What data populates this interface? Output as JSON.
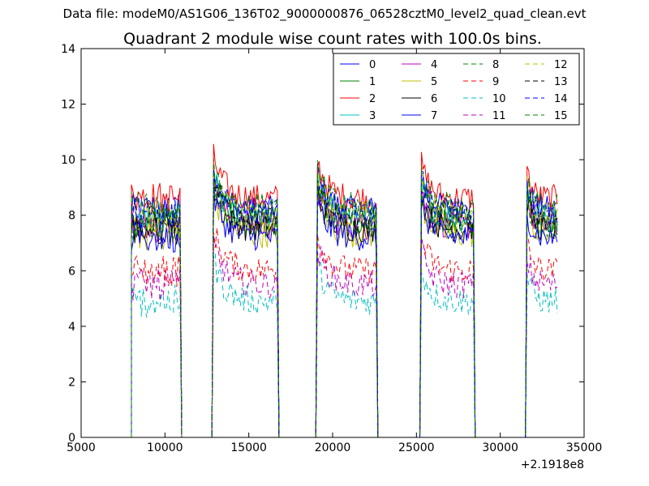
{
  "figure": {
    "suptitle": "Data file: modeM0/AS1G06_136T02_9000000876_06528cztM0_level2_quad_clean.evt"
  },
  "chart_data": {
    "type": "line",
    "title": "Quadrant 2 module wise count rates with 100.0s bins.",
    "xlabel": "",
    "ylabel": "",
    "xlim": [
      5000,
      35000
    ],
    "ylim": [
      0,
      14
    ],
    "x_offset_label": "+2.1918e8",
    "xticks": [
      5000,
      10000,
      15000,
      20000,
      25000,
      30000,
      35000
    ],
    "xtick_labels": [
      "5000",
      "10000",
      "15000",
      "20000",
      "25000",
      "30000",
      "35000"
    ],
    "yticks": [
      0,
      2,
      4,
      6,
      8,
      10,
      12,
      14
    ],
    "ytick_labels": [
      "0",
      "2",
      "4",
      "6",
      "8",
      "10",
      "12",
      "14"
    ],
    "grid": false,
    "legend_position": "top-right",
    "legend_columns": 4,
    "orbit_segments": [
      {
        "x_start": 8000,
        "x_end": 10900,
        "y_offset": 0
      },
      {
        "x_start": 12900,
        "x_end": 16700,
        "y_offset": 1.5
      },
      {
        "x_start": 19100,
        "x_end": 22600,
        "y_offset": 1.3
      },
      {
        "x_start": 25300,
        "x_end": 28400,
        "y_offset": 1.2
      },
      {
        "x_start": 31600,
        "x_end": 33400,
        "y_offset": 1.0
      }
    ],
    "series": [
      {
        "name": "0",
        "color": "#0000ff",
        "dash": "solid",
        "level": 8.2
      },
      {
        "name": "1",
        "color": "#008000",
        "dash": "solid",
        "level": 7.8
      },
      {
        "name": "2",
        "color": "#ff0000",
        "dash": "solid",
        "level": 8.6
      },
      {
        "name": "3",
        "color": "#00bfbf",
        "dash": "solid",
        "level": 7.9
      },
      {
        "name": "4",
        "color": "#bf00bf",
        "dash": "solid",
        "level": 7.6
      },
      {
        "name": "5",
        "color": "#bfbf00",
        "dash": "solid",
        "level": 7.3
      },
      {
        "name": "6",
        "color": "#000000",
        "dash": "solid",
        "level": 7.5
      },
      {
        "name": "7",
        "color": "#0000ff",
        "dash": "solid",
        "level": 7.2
      },
      {
        "name": "8",
        "color": "#008000",
        "dash": "dashed",
        "level": 7.7
      },
      {
        "name": "9",
        "color": "#ff0000",
        "dash": "dashed",
        "level": 6.0
      },
      {
        "name": "10",
        "color": "#00bfbf",
        "dash": "dashed",
        "level": 4.9
      },
      {
        "name": "11",
        "color": "#bf00bf",
        "dash": "dashed",
        "level": 5.5
      },
      {
        "name": "12",
        "color": "#bfbf00",
        "dash": "dashed",
        "level": 8.0
      },
      {
        "name": "13",
        "color": "#000000",
        "dash": "dashed",
        "level": 7.9
      },
      {
        "name": "14",
        "color": "#0000ff",
        "dash": "dashed",
        "level": 8.1
      },
      {
        "name": "15",
        "color": "#008000",
        "dash": "dashed",
        "level": 8.3
      }
    ]
  }
}
